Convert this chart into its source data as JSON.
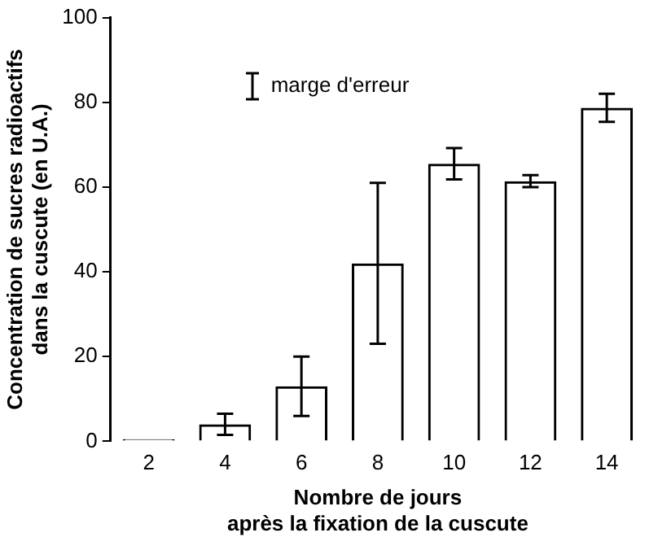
{
  "chart_data": {
    "type": "bar",
    "xlabel": "Nombre de jours\naprès la fixation de la cuscute",
    "ylabel": "Concentration de sucres radioactifs\ndans la cuscute (en U.A.)",
    "categories": [
      "2",
      "4",
      "6",
      "8",
      "10",
      "12",
      "14"
    ],
    "values": [
      0.5,
      4,
      13,
      42,
      65.5,
      61.4,
      78.7
    ],
    "errors": [
      null,
      2.5,
      7,
      19,
      3.7,
      1.4,
      3.3
    ],
    "color": "#000000",
    "ylim": [
      0,
      100
    ],
    "yticks": [
      0,
      20,
      40,
      60,
      80,
      100
    ],
    "grid": false,
    "legend": false,
    "annotations": [
      "marge d'erreur"
    ]
  }
}
